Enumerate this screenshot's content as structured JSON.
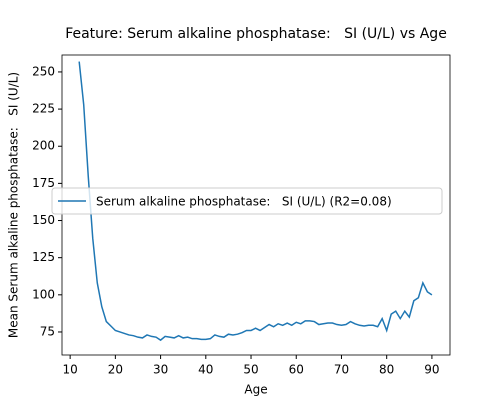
{
  "chart_data": {
    "type": "line",
    "title": "Feature: Serum alkaline phosphatase:   SI (U/L) vs Age",
    "xlabel": "Age",
    "ylabel": "Mean Serum alkaline phosphatase:   SI (U/L)",
    "x": [
      12,
      13,
      14,
      15,
      16,
      17,
      18,
      19,
      20,
      21,
      22,
      23,
      24,
      25,
      26,
      27,
      28,
      29,
      30,
      31,
      32,
      33,
      34,
      35,
      36,
      37,
      38,
      39,
      40,
      41,
      42,
      43,
      44,
      45,
      46,
      47,
      48,
      49,
      50,
      51,
      52,
      53,
      54,
      55,
      56,
      57,
      58,
      59,
      60,
      61,
      62,
      63,
      64,
      65,
      66,
      67,
      68,
      69,
      70,
      71,
      72,
      73,
      74,
      75,
      76,
      77,
      78,
      79,
      80,
      81,
      82,
      83,
      84,
      85,
      86,
      87,
      88,
      89,
      90
    ],
    "series": [
      {
        "name": "Serum alkaline phosphatase:   SI (U/L) (R2=0.08)",
        "color": "#1f77b4",
        "values": [
          257,
          228,
          180,
          138,
          108,
          92,
          82,
          79,
          76,
          75,
          74,
          73,
          72.5,
          71.5,
          71,
          73,
          72,
          71.5,
          69.5,
          72,
          71.5,
          71,
          72.5,
          71,
          71.5,
          70.5,
          70.5,
          70,
          70,
          70.5,
          73,
          72,
          71.5,
          73.5,
          73,
          73.5,
          74.5,
          76,
          76,
          77.5,
          76,
          78,
          80,
          78.5,
          80.5,
          79.5,
          81,
          79.5,
          81.5,
          80.5,
          82.5,
          82.5,
          82,
          80,
          80.5,
          81,
          81,
          80,
          79.5,
          80,
          82,
          80.5,
          79.5,
          79,
          79.5,
          79.5,
          78.5,
          84,
          76,
          87,
          89,
          84,
          89,
          85,
          96,
          98,
          108,
          102,
          100
        ]
      }
    ],
    "xlim": [
      8.2,
      94
    ],
    "ylim": [
      59.5,
      261.4
    ],
    "xticks": [
      10,
      20,
      30,
      40,
      50,
      60,
      70,
      80,
      90
    ],
    "yticks": [
      75,
      100,
      125,
      150,
      175,
      200,
      225,
      250
    ],
    "legend": "center left"
  }
}
